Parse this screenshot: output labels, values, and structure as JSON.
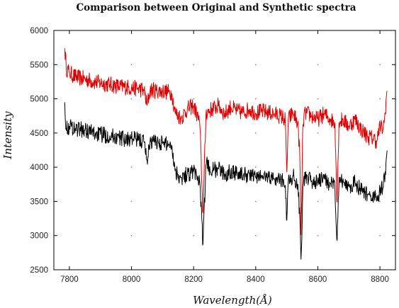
{
  "chart_data": {
    "type": "line",
    "title": "Comparison between Original and Synthetic spectra",
    "xlabel": "Wavelength(Å)",
    "ylabel": "Intensity",
    "xlim": [
      7750,
      8850
    ],
    "ylim": [
      2500,
      6000
    ],
    "x_ticks": [
      7800,
      8000,
      8200,
      8400,
      8600,
      8800
    ],
    "y_ticks": [
      2500,
      3000,
      3500,
      4000,
      4500,
      5000,
      5500,
      6000
    ],
    "x_tick_labels": [
      "7800",
      "8000",
      "8200",
      "8400",
      "8600",
      "8800"
    ],
    "y_tick_labels": [
      "2500",
      "3000",
      "3500",
      "4000",
      "4500",
      "5000",
      "5500",
      "6000"
    ],
    "grid": "dotted",
    "legend": "none",
    "series": [
      {
        "color": "#e00000",
        "x": [
          7785,
          7790,
          7800,
          7820,
          7850,
          7880,
          7900,
          7930,
          7960,
          7990,
          8000,
          8020,
          8040,
          8050,
          8060,
          8080,
          8100,
          8120,
          8130,
          8140,
          8160,
          8180,
          8200,
          8220,
          8230,
          8240,
          8260,
          8280,
          8300,
          8320,
          8340,
          8360,
          8380,
          8400,
          8420,
          8440,
          8460,
          8480,
          8495,
          8500,
          8505,
          8520,
          8535,
          8542,
          8546,
          8552,
          8560,
          8580,
          8600,
          8620,
          8640,
          8655,
          8662,
          8668,
          8680,
          8700,
          8720,
          8740,
          8760,
          8780,
          8790,
          8800,
          8810,
          8815,
          8820,
          8824
        ],
        "y": [
          5740,
          5450,
          5380,
          5320,
          5290,
          5250,
          5230,
          5210,
          5180,
          5170,
          5160,
          5150,
          5130,
          4900,
          5130,
          5120,
          5110,
          5100,
          5080,
          4800,
          4720,
          4850,
          4900,
          4650,
          3300,
          4800,
          4850,
          4900,
          4780,
          4880,
          4820,
          4800,
          4850,
          4790,
          4820,
          4800,
          4780,
          4750,
          4700,
          3900,
          4700,
          4800,
          4650,
          4200,
          2950,
          4650,
          4800,
          4750,
          4700,
          4780,
          4700,
          4650,
          3450,
          4650,
          4700,
          4600,
          4700,
          4550,
          4450,
          4420,
          4380,
          4600,
          4550,
          4700,
          5000,
          5150
        ],
        "noise": 120
      },
      {
        "color": "#000000",
        "x": [
          7785,
          7790,
          7800,
          7820,
          7850,
          7880,
          7900,
          7930,
          7960,
          7990,
          8000,
          8020,
          8040,
          8050,
          8060,
          8080,
          8100,
          8120,
          8130,
          8140,
          8160,
          8180,
          8200,
          8220,
          8230,
          8240,
          8260,
          8280,
          8300,
          8320,
          8340,
          8360,
          8380,
          8400,
          8420,
          8440,
          8460,
          8480,
          8495,
          8500,
          8505,
          8520,
          8535,
          8542,
          8546,
          8552,
          8560,
          8580,
          8600,
          8620,
          8640,
          8655,
          8662,
          8668,
          8680,
          8700,
          8720,
          8740,
          8760,
          8780,
          8790,
          8800,
          8810,
          8815,
          8820,
          8824
        ],
        "y": [
          4950,
          4550,
          4600,
          4570,
          4540,
          4500,
          4480,
          4460,
          4430,
          4410,
          4420,
          4400,
          4380,
          4100,
          4380,
          4370,
          4350,
          4340,
          4320,
          3950,
          3850,
          3900,
          3950,
          3800,
          2850,
          4050,
          3950,
          3980,
          3880,
          3950,
          3920,
          3880,
          3900,
          3850,
          3870,
          3860,
          3830,
          3820,
          3780,
          3200,
          3800,
          3880,
          3750,
          3300,
          2620,
          3750,
          3830,
          3800,
          3780,
          3830,
          3760,
          3700,
          2900,
          3750,
          3800,
          3720,
          3780,
          3650,
          3600,
          3580,
          3500,
          3650,
          3700,
          3850,
          4100,
          4300
        ],
        "noise": 120
      }
    ]
  }
}
